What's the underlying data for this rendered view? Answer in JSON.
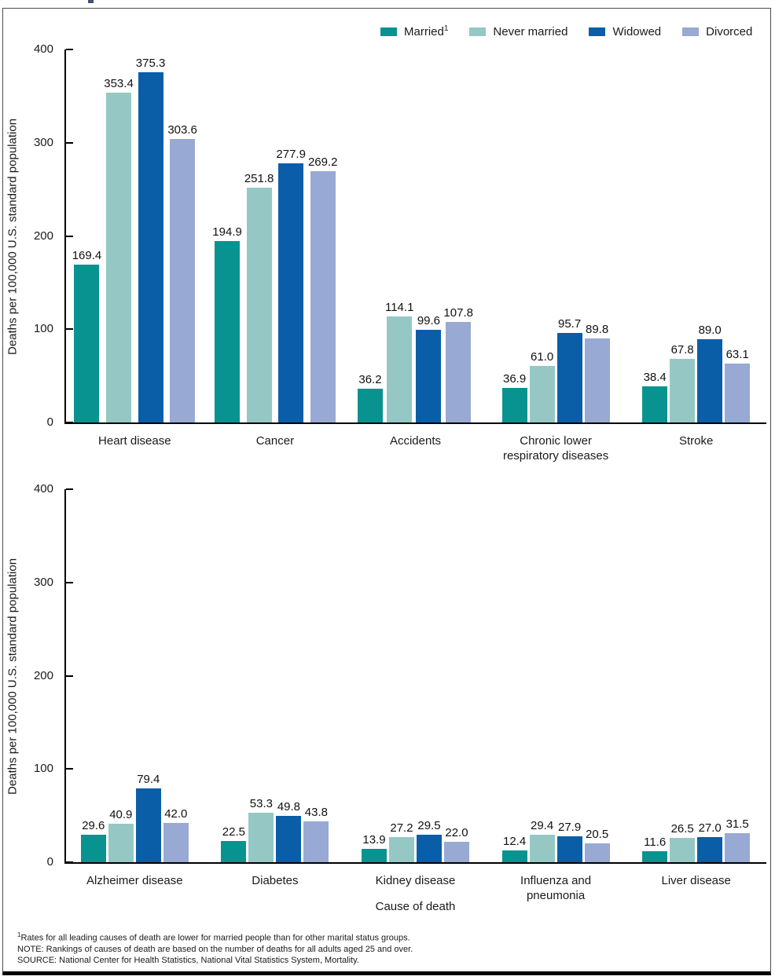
{
  "figure": {
    "description": "Two-panel grouped bar chart of death rates by marital status and cause of death"
  },
  "colors": {
    "married": "#099390",
    "never_married": "#95c8c4",
    "widowed": "#0a5ea8",
    "divorced": "#98a9d3",
    "axis": "#000000",
    "text": "#1a1a1a"
  },
  "legend": {
    "items": [
      {
        "label": "Married",
        "sup": "1",
        "color": "#099390"
      },
      {
        "label": "Never married",
        "sup": "",
        "color": "#95c8c4"
      },
      {
        "label": "Widowed",
        "sup": "",
        "color": "#0a5ea8"
      },
      {
        "label": "Divorced",
        "sup": "",
        "color": "#98a9d3"
      }
    ]
  },
  "chart_data": [
    {
      "type": "bar",
      "title": "",
      "categories": [
        "Heart disease",
        "Cancer",
        "Accidents",
        "Chronic lower\nrespiratory diseases",
        "Stroke"
      ],
      "series": [
        {
          "name": "Married",
          "color": "#099390",
          "values": [
            169.4,
            194.9,
            36.2,
            36.9,
            38.4
          ]
        },
        {
          "name": "Never married",
          "color": "#95c8c4",
          "values": [
            353.4,
            251.8,
            114.1,
            61.0,
            67.8
          ]
        },
        {
          "name": "Widowed",
          "color": "#0a5ea8",
          "values": [
            375.3,
            277.9,
            99.6,
            95.7,
            89.0
          ]
        },
        {
          "name": "Divorced",
          "color": "#98a9d3",
          "values": [
            303.6,
            269.2,
            107.8,
            89.8,
            63.1
          ]
        }
      ],
      "ylabel": "Deaths per 100,000 U.S. standard population",
      "xlabel": "",
      "ylim": [
        0,
        400
      ],
      "yticks": [
        0,
        100,
        200,
        300,
        400
      ],
      "grid": false,
      "legend_position": "top-right",
      "value_labels": true
    },
    {
      "type": "bar",
      "title": "",
      "categories": [
        "Alzheimer disease",
        "Diabetes",
        "Kidney disease",
        "Influenza and\npneumonia",
        "Liver disease"
      ],
      "series": [
        {
          "name": "Married",
          "color": "#099390",
          "values": [
            29.6,
            22.5,
            13.9,
            12.4,
            11.6
          ]
        },
        {
          "name": "Never married",
          "color": "#95c8c4",
          "values": [
            40.9,
            53.3,
            27.2,
            29.4,
            26.5
          ]
        },
        {
          "name": "Widowed",
          "color": "#0a5ea8",
          "values": [
            79.4,
            49.8,
            29.5,
            27.9,
            27.0
          ]
        },
        {
          "name": "Divorced",
          "color": "#98a9d3",
          "values": [
            42.0,
            43.8,
            22.0,
            20.5,
            31.5
          ]
        }
      ],
      "ylabel": "Deaths per 100,000 U.S. standard population",
      "xlabel": "Cause of death",
      "ylim": [
        0,
        400
      ],
      "yticks": [
        0,
        100,
        200,
        300,
        400
      ],
      "grid": false,
      "legend_position": "none",
      "value_labels": true
    }
  ],
  "footnotes": {
    "f1_sup": "1",
    "f1_text": "Rates for all leading causes of death are lower for married people than for other marital status groups.",
    "note": "NOTE: Rankings of causes of death are based on the number of deaths for all adults aged 25 and over.",
    "source": "SOURCE: National Center for Health Statistics, National Vital Statistics System, Mortality."
  }
}
